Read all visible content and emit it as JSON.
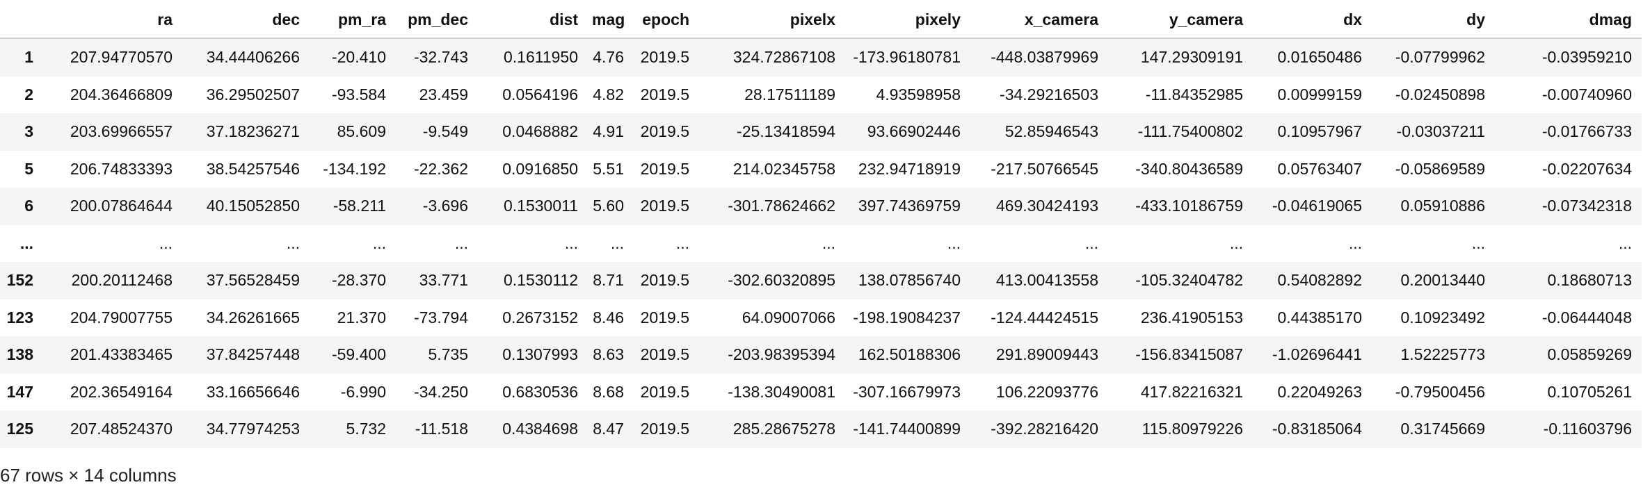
{
  "table": {
    "index_header": "",
    "columns": [
      "ra",
      "dec",
      "pm_ra",
      "pm_dec",
      "dist",
      "mag",
      "epoch",
      "pixelx",
      "pixely",
      "x_camera",
      "y_camera",
      "dx",
      "dy",
      "dmag"
    ],
    "rows": [
      {
        "index": "1",
        "cells": [
          "207.94770570",
          "34.44406266",
          "-20.410",
          "-32.743",
          "0.1611950",
          "4.76",
          "2019.5",
          "324.72867108",
          "-173.96180781",
          "-448.03879969",
          "147.29309191",
          "0.01650486",
          "-0.07799962",
          "-0.03959210"
        ]
      },
      {
        "index": "2",
        "cells": [
          "204.36466809",
          "36.29502507",
          "-93.584",
          "23.459",
          "0.0564196",
          "4.82",
          "2019.5",
          "28.17511189",
          "4.93598958",
          "-34.29216503",
          "-11.84352985",
          "0.00999159",
          "-0.02450898",
          "-0.00740960"
        ]
      },
      {
        "index": "3",
        "cells": [
          "203.69966557",
          "37.18236271",
          "85.609",
          "-9.549",
          "0.0468882",
          "4.91",
          "2019.5",
          "-25.13418594",
          "93.66902446",
          "52.85946543",
          "-111.75400802",
          "0.10957967",
          "-0.03037211",
          "-0.01766733"
        ]
      },
      {
        "index": "5",
        "cells": [
          "206.74833393",
          "38.54257546",
          "-134.192",
          "-22.362",
          "0.0916850",
          "5.51",
          "2019.5",
          "214.02345758",
          "232.94718919",
          "-217.50766545",
          "-340.80436589",
          "0.05763407",
          "-0.05869589",
          "-0.02207634"
        ]
      },
      {
        "index": "6",
        "cells": [
          "200.07864644",
          "40.15052850",
          "-58.211",
          "-3.696",
          "0.1530011",
          "5.60",
          "2019.5",
          "-301.78624662",
          "397.74369759",
          "469.30424193",
          "-433.10186759",
          "-0.04619065",
          "0.05910886",
          "-0.07342318"
        ]
      },
      {
        "index": "...",
        "cells": [
          "...",
          "...",
          "...",
          "...",
          "...",
          "...",
          "...",
          "...",
          "...",
          "...",
          "...",
          "...",
          "...",
          "..."
        ]
      },
      {
        "index": "152",
        "cells": [
          "200.20112468",
          "37.56528459",
          "-28.370",
          "33.771",
          "0.1530112",
          "8.71",
          "2019.5",
          "-302.60320895",
          "138.07856740",
          "413.00413558",
          "-105.32404782",
          "0.54082892",
          "0.20013440",
          "0.18680713"
        ]
      },
      {
        "index": "123",
        "cells": [
          "204.79007755",
          "34.26261665",
          "21.370",
          "-73.794",
          "0.2673152",
          "8.46",
          "2019.5",
          "64.09007066",
          "-198.19084237",
          "-124.44424515",
          "236.41905153",
          "0.44385170",
          "0.10923492",
          "-0.06444048"
        ]
      },
      {
        "index": "138",
        "cells": [
          "201.43383465",
          "37.84257448",
          "-59.400",
          "5.735",
          "0.1307993",
          "8.63",
          "2019.5",
          "-203.98395394",
          "162.50188306",
          "291.89009443",
          "-156.83415087",
          "-1.02696441",
          "1.52225773",
          "0.05859269"
        ]
      },
      {
        "index": "147",
        "cells": [
          "202.36549164",
          "33.16656646",
          "-6.990",
          "-34.250",
          "0.6830536",
          "8.68",
          "2019.5",
          "-138.30490081",
          "-307.16679973",
          "106.22093776",
          "417.82216321",
          "0.22049263",
          "-0.79500456",
          "0.10705261"
        ]
      },
      {
        "index": "125",
        "cells": [
          "207.48524370",
          "34.77974253",
          "5.732",
          "-11.518",
          "0.4384698",
          "8.47",
          "2019.5",
          "285.28675278",
          "-141.74400899",
          "-392.28216420",
          "115.80979226",
          "-0.83185064",
          "0.31745669",
          "-0.11603796"
        ]
      }
    ]
  },
  "shape_text": "67 rows × 14 columns"
}
